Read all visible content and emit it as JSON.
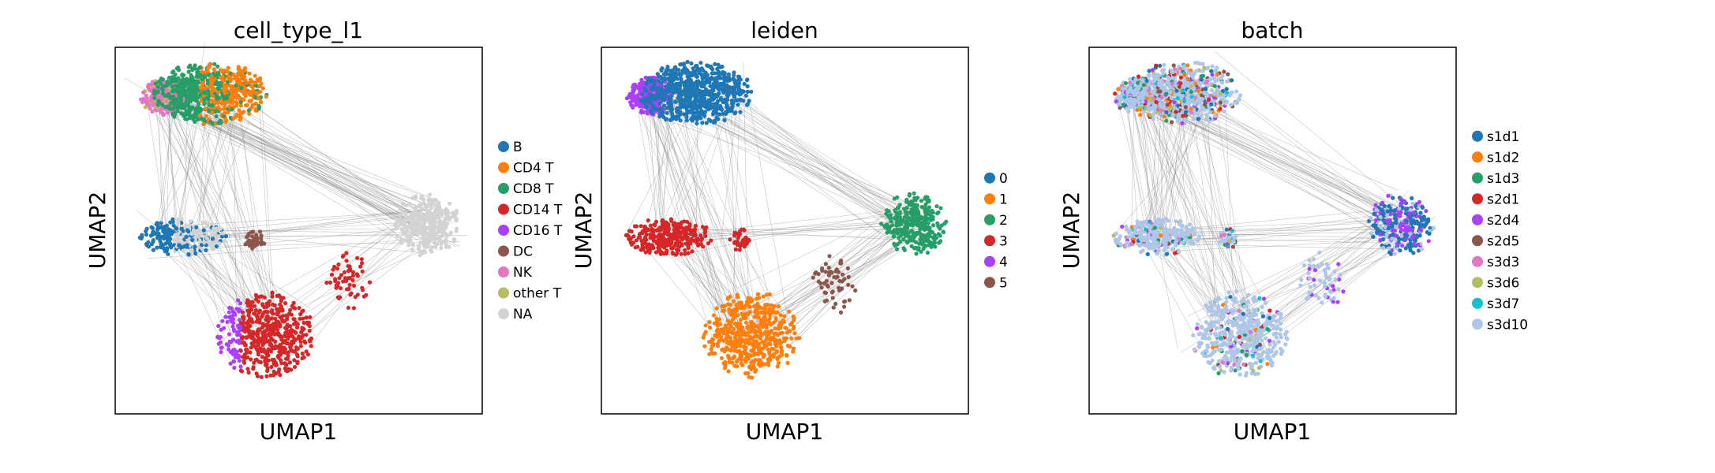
{
  "palette": {
    "background": "#ffffff",
    "frame": "#000000",
    "edges": "#808080"
  },
  "chart_data": [
    {
      "type": "scatter",
      "title": "cell_type_l1",
      "xlabel": "UMAP1",
      "ylabel": "UMAP2",
      "grid": false,
      "legend_position": "right",
      "series": [
        {
          "name": "B",
          "color": "#1f77b4"
        },
        {
          "name": "CD4 T",
          "color": "#ff7f0e"
        },
        {
          "name": "CD8 T",
          "color": "#279e68"
        },
        {
          "name": "CD14 T",
          "color": "#d62728"
        },
        {
          "name": "CD16 T",
          "color": "#aa40fc"
        },
        {
          "name": "DC",
          "color": "#8c564b"
        },
        {
          "name": "NK",
          "color": "#e377c2"
        },
        {
          "name": "other T",
          "color": "#b5bd61"
        },
        {
          "name": "NA",
          "color": "#d3d3d3"
        }
      ]
    },
    {
      "type": "scatter",
      "title": "leiden",
      "xlabel": "UMAP1",
      "ylabel": "UMAP2",
      "grid": false,
      "legend_position": "right",
      "series": [
        {
          "name": "0",
          "color": "#1f77b4"
        },
        {
          "name": "1",
          "color": "#ff7f0e"
        },
        {
          "name": "2",
          "color": "#279e68"
        },
        {
          "name": "3",
          "color": "#d62728"
        },
        {
          "name": "4",
          "color": "#aa40fc"
        },
        {
          "name": "5",
          "color": "#8c564b"
        }
      ]
    },
    {
      "type": "scatter",
      "title": "batch",
      "xlabel": "UMAP1",
      "ylabel": "UMAP2",
      "grid": false,
      "legend_position": "right",
      "series": [
        {
          "name": "s1d1",
          "color": "#1f77b4"
        },
        {
          "name": "s1d2",
          "color": "#ff7f0e"
        },
        {
          "name": "s1d3",
          "color": "#279e68"
        },
        {
          "name": "s2d1",
          "color": "#d62728"
        },
        {
          "name": "s2d4",
          "color": "#aa40fc"
        },
        {
          "name": "s2d5",
          "color": "#8c564b"
        },
        {
          "name": "s3d3",
          "color": "#e377c2"
        },
        {
          "name": "s3d6",
          "color": "#b5bd61"
        },
        {
          "name": "s3d7",
          "color": "#17becf"
        },
        {
          "name": "s3d10",
          "color": "#aec7e8"
        }
      ]
    }
  ]
}
